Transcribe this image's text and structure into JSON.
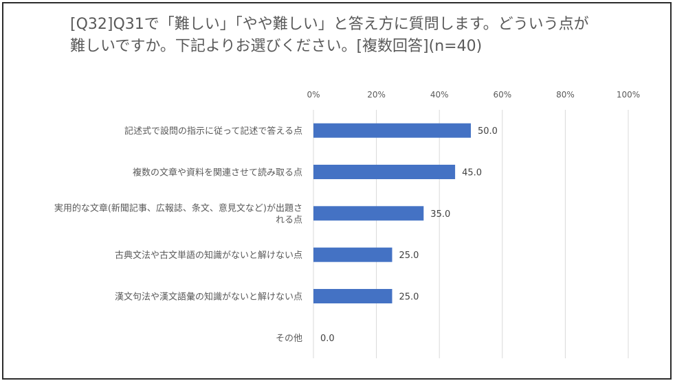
{
  "chart_data": {
    "type": "bar",
    "orientation": "horizontal",
    "title_lines": [
      "[Q32]Q31で「難しい」「やや難しい」と答え方に質問します。どういう点が",
      "難しいですか。下記よりお選びください。[複数回答](n=40)"
    ],
    "categories": [
      [
        "記述式で設問の指示に従って記述で答える点"
      ],
      [
        "複数の文章や資料を関連させて読み取る点"
      ],
      [
        "実用的な文章(新聞記事、広報誌、条文、意見文など)が出題さ",
        "れる点"
      ],
      [
        "古典文法や古文単語の知識がないと解けない点"
      ],
      [
        "漢文句法や漢文語彙の知識がないと解けない点"
      ],
      [
        "その他"
      ]
    ],
    "values": [
      50.0,
      45.0,
      35.0,
      25.0,
      25.0,
      0.0
    ],
    "value_labels": [
      "50.0",
      "45.0",
      "35.0",
      "25.0",
      "25.0",
      "0.0"
    ],
    "x_ticks": [
      "0%",
      "20%",
      "40%",
      "60%",
      "80%",
      "100%"
    ],
    "xlim": [
      0,
      100
    ],
    "grid": true,
    "xaxis_position": "top",
    "legend": "none",
    "colors": {
      "bar": "#4472c4",
      "grid": "#d9d9d9",
      "text": "#595959",
      "border": "#2b2b2b"
    }
  }
}
